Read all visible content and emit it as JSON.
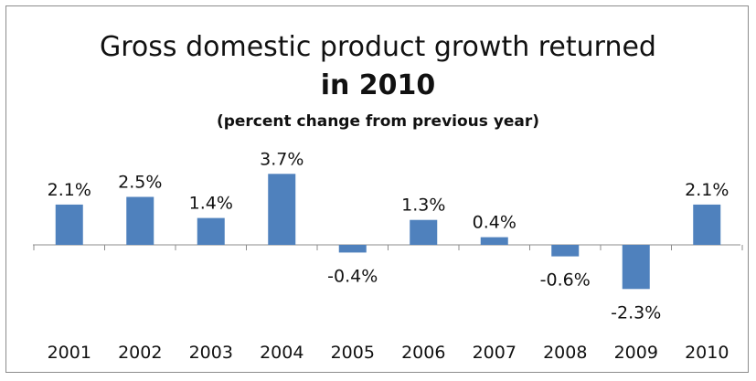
{
  "chart_data": {
    "type": "bar",
    "title_line1": "Gross domestic product growth returned",
    "title_line2": "in 2010",
    "subtitle": "(percent change from previous year)",
    "categories": [
      "2001",
      "2002",
      "2003",
      "2004",
      "2005",
      "2006",
      "2007",
      "2008",
      "2009",
      "2010"
    ],
    "values": [
      2.1,
      2.5,
      1.4,
      3.7,
      -0.4,
      1.3,
      0.4,
      -0.6,
      -2.3,
      2.1
    ],
    "data_labels": [
      "2.1%",
      "2.5%",
      "1.4%",
      "3.7%",
      "-0.4%",
      "1.3%",
      "0.4%",
      "-0.6%",
      "-2.3%",
      "2.1%"
    ],
    "bar_color": "#4f81bd",
    "ylim": [
      -2.3,
      3.7
    ],
    "grid": false,
    "legend": "none"
  }
}
